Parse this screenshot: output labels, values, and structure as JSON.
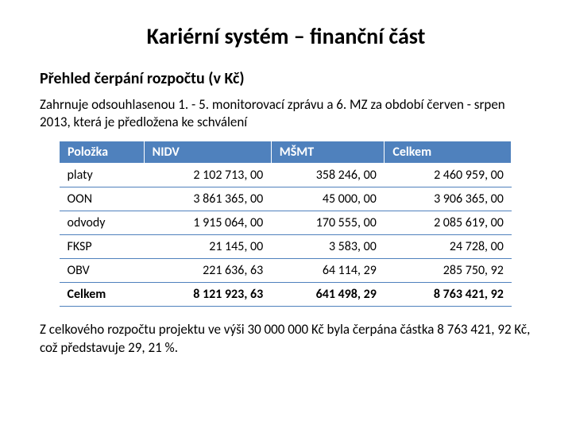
{
  "title": "Kariérní systém – finanční část",
  "subtitle": "Přehled čerpání rozpočtu (v Kč)",
  "intro": "Zahrnuje odsouhlasenou 1. - 5. monitorovací zprávu a 6. MZ za období červen - srpen 2013, která je předložena ke schválení",
  "table": {
    "header_bg": "#4f81bd",
    "header_fg": "#ffffff",
    "border_color": "#4f81bd",
    "columns": [
      "Položka",
      "NIDV",
      "MŠMT",
      "Celkem"
    ],
    "rows": [
      [
        "platy",
        "2 102 713, 00",
        "358 246, 00",
        "2 460 959, 00"
      ],
      [
        "OON",
        "3 861 365, 00",
        "45 000, 00",
        "3 906 365, 00"
      ],
      [
        "odvody",
        "1 915 064, 00",
        "170 555, 00",
        "2 085 619, 00"
      ],
      [
        "FKSP",
        "21 145, 00",
        "3 583, 00",
        "24 728, 00"
      ],
      [
        "OBV",
        "221 636, 63",
        "64 114, 29",
        "285 750, 92"
      ],
      [
        "Celkem",
        "8 121 923, 63",
        "641 498, 29",
        "8 763 421, 92"
      ]
    ]
  },
  "footer": "Z celkového rozpočtu projektu ve výši 30 000 000 Kč byla čerpána částka 8 763 421, 92 Kč, což představuje 29, 21 %."
}
